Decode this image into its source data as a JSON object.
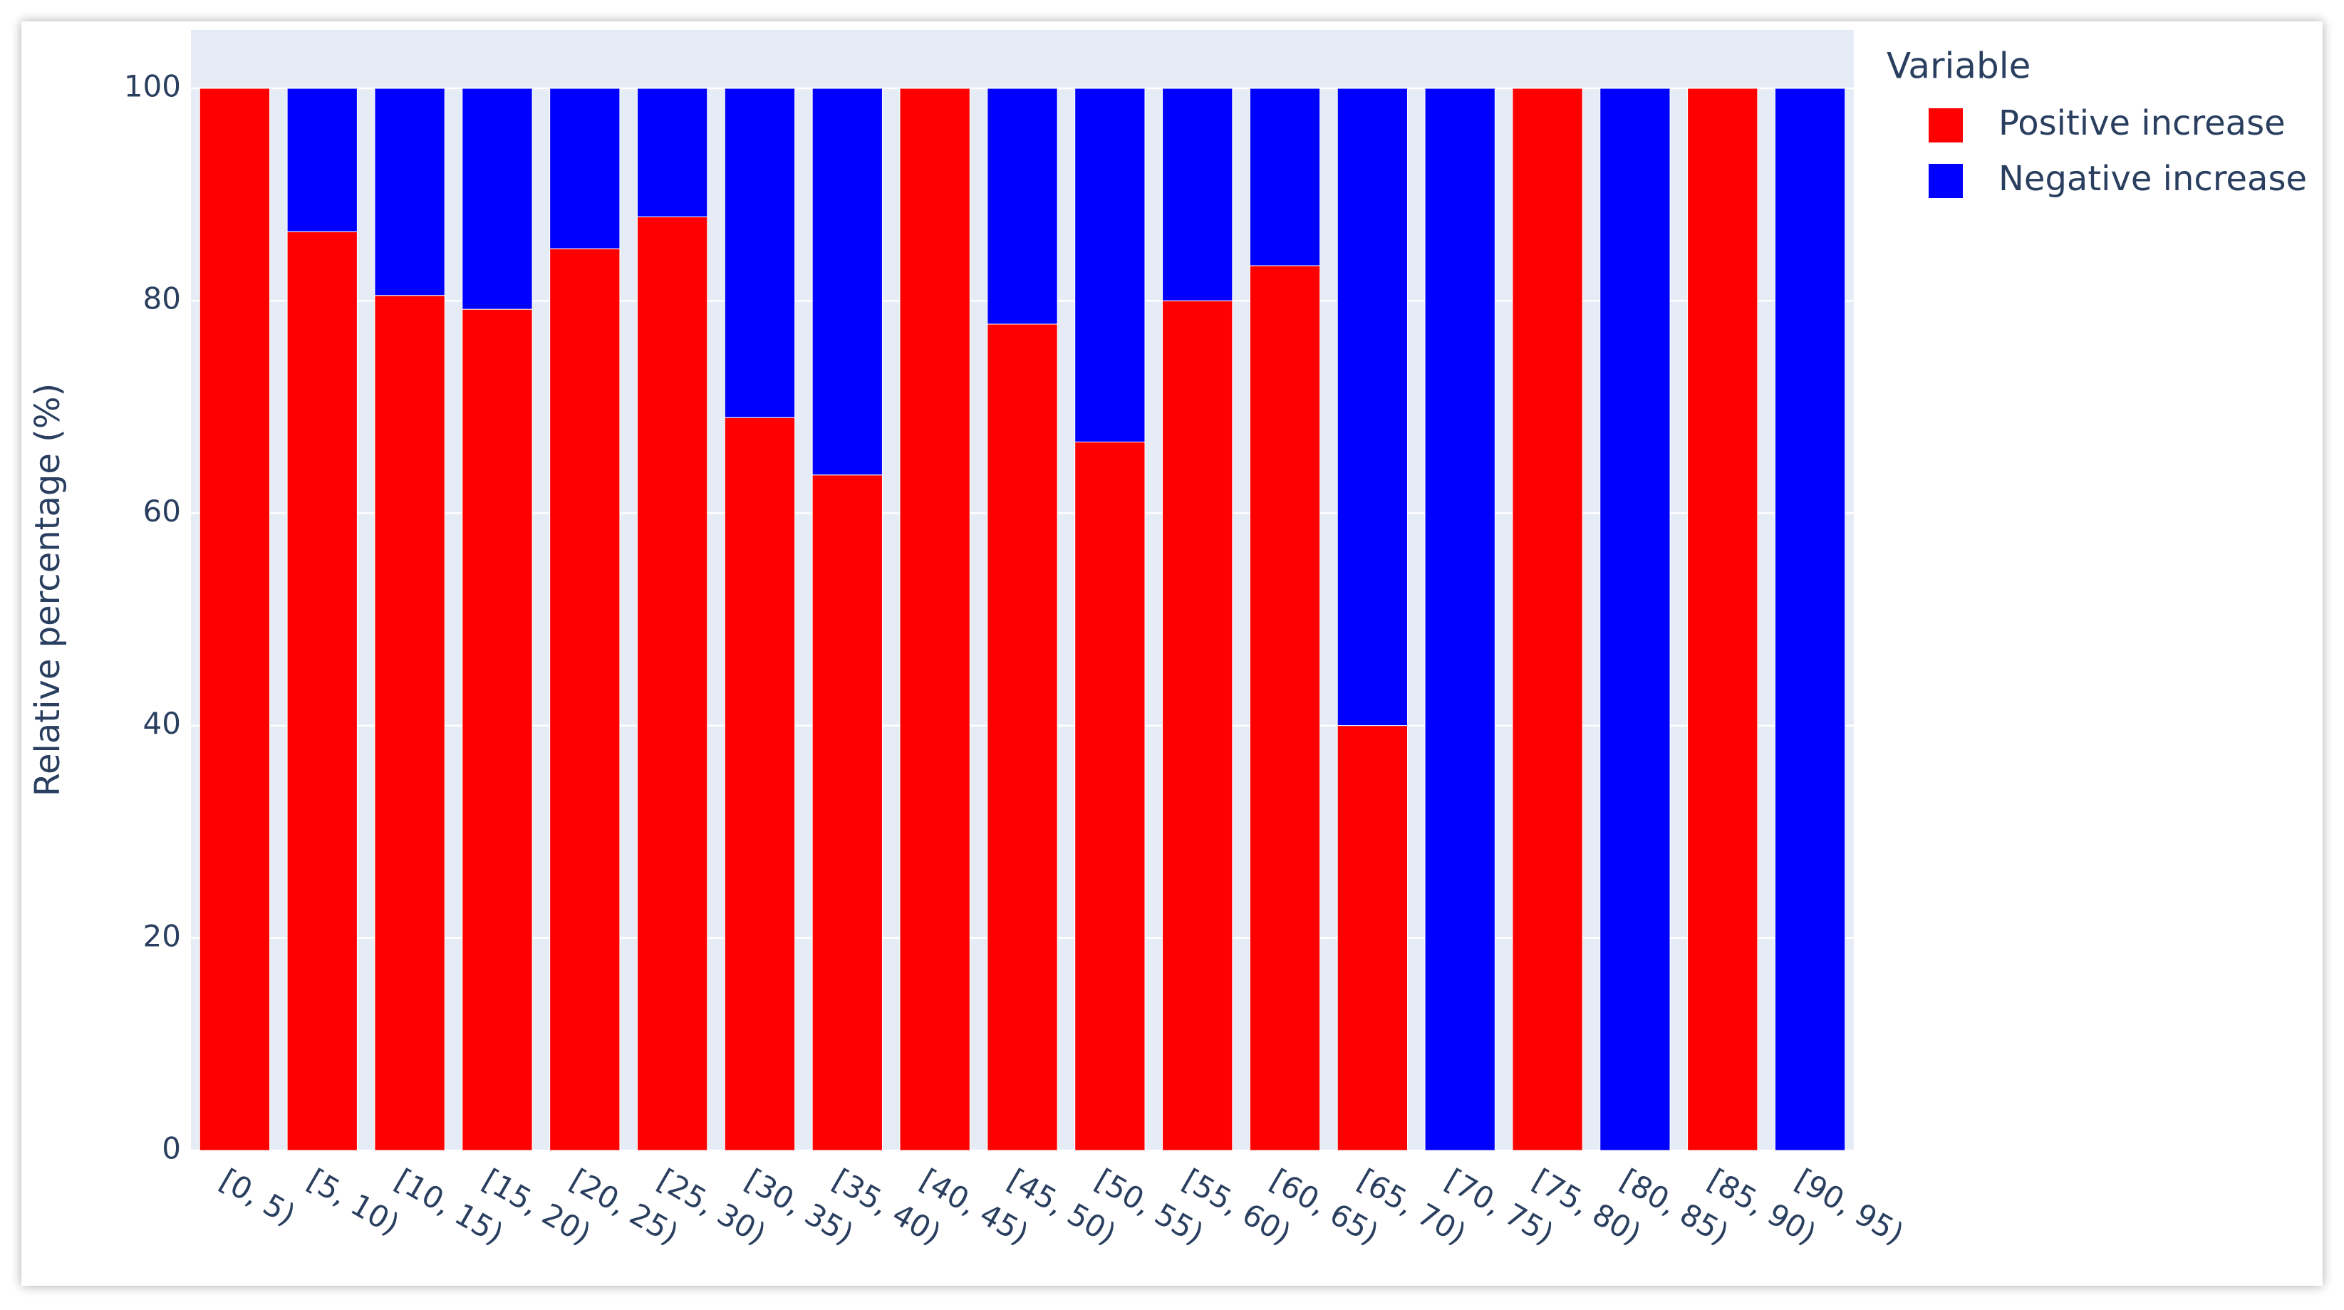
{
  "chart_data": {
    "type": "stacked_bar",
    "y_label": "Relative percentage (%)",
    "legend_title": "Variable",
    "categories": [
      "[0, 5)",
      "[5, 10)",
      "[10, 15)",
      "[15, 20)",
      "[20, 25)",
      "[25, 30)",
      "[30, 35)",
      "[35, 40)",
      "[40, 45)",
      "[45, 50)",
      "[50, 55)",
      "[55, 60)",
      "[60, 65)",
      "[65, 70)",
      "[70, 75)",
      "[75, 80)",
      "[80, 85)",
      "[85, 90)",
      "[90, 95)"
    ],
    "series": [
      {
        "name": "Positive increase",
        "color": "#ff0000",
        "values": [
          100,
          86.5,
          80.5,
          79.2,
          84.9,
          87.9,
          69,
          63.6,
          100,
          77.8,
          66.7,
          80,
          83.3,
          40,
          0,
          100,
          0,
          100,
          0
        ]
      },
      {
        "name": "Negative increase",
        "color": "#0000ff",
        "values": [
          0,
          13.5,
          19.5,
          20.8,
          15.1,
          12.1,
          31,
          36.4,
          0,
          22.2,
          33.3,
          20,
          16.7,
          60,
          100,
          0,
          100,
          0,
          100
        ]
      }
    ],
    "ylim": [
      0,
      105.5
    ],
    "yticks": [
      0,
      20,
      40,
      60,
      80,
      100
    ],
    "grid": true
  }
}
